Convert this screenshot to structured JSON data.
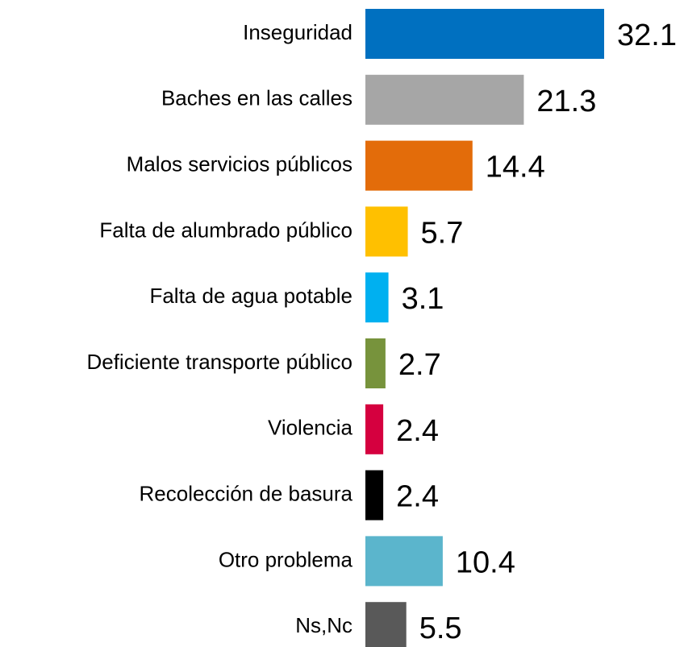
{
  "chart_data": {
    "type": "bar",
    "orientation": "horizontal",
    "categories": [
      "Inseguridad",
      "Baches en las calles",
      "Malos servicios públicos",
      "Falta de alumbrado público",
      "Falta de agua potable",
      "Deficiente transporte público",
      "Violencia",
      "Recolección de basura",
      "Otro problema",
      "Ns,Nc"
    ],
    "values": [
      32.1,
      21.3,
      14.4,
      5.7,
      3.1,
      2.7,
      2.4,
      2.4,
      10.4,
      5.5
    ],
    "colors": [
      "#0070c0",
      "#a6a6a6",
      "#e36c0a",
      "#ffc000",
      "#00b0f0",
      "#77933c",
      "#d5003f",
      "#000000",
      "#5bb5cc",
      "#595959"
    ]
  }
}
